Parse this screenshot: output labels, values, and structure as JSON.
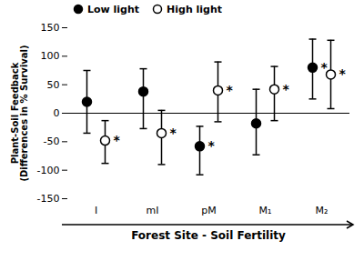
{
  "chart_data": {
    "type": "scatter",
    "categories": [
      "I",
      "mI",
      "pM",
      "M₁",
      "M₂"
    ],
    "series": [
      {
        "name": "Low light",
        "color": "#000000",
        "marker": "circle",
        "values": [
          20,
          38,
          -58,
          -18,
          80
        ],
        "yerr_low": [
          55,
          65,
          50,
          55,
          55
        ],
        "yerr_high": [
          55,
          40,
          35,
          60,
          50
        ],
        "significant": [
          false,
          false,
          true,
          false,
          true
        ]
      },
      {
        "name": "High light",
        "color": "#000000",
        "marker": "open_circle",
        "values": [
          -48,
          -35,
          40,
          42,
          68
        ],
        "yerr_low": [
          40,
          55,
          55,
          55,
          60
        ],
        "yerr_high": [
          35,
          40,
          50,
          40,
          60
        ],
        "significant": [
          true,
          true,
          true,
          true,
          true
        ]
      }
    ],
    "ylabel": "Plant-Soil Feedback\n(Differences in % Survival)",
    "xlabel": "Forest Site - Soil Fertility",
    "ylim": [
      -150,
      150
    ],
    "yticks": [
      -150,
      -100,
      -50,
      0,
      50,
      100,
      150
    ],
    "grid": false,
    "legend": "upper left",
    "significance_label": "*",
    "baseline": 0
  }
}
